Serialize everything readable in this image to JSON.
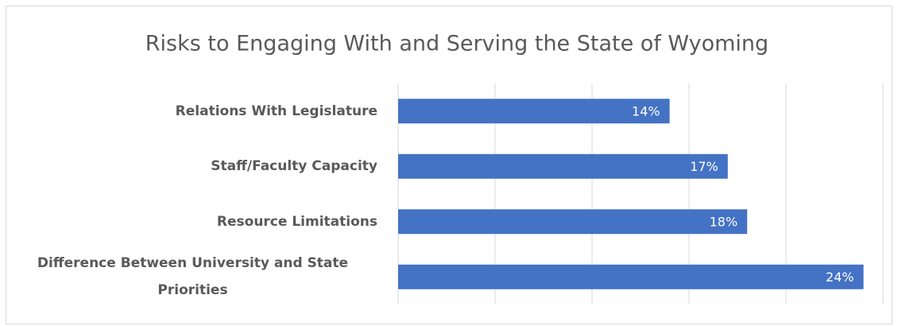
{
  "chart_data": {
    "type": "bar",
    "orientation": "horizontal",
    "title": "Risks to Engaging With and Serving the State of Wyoming",
    "categories": [
      "Relations With Legislature",
      "Staff/Faculty Capacity",
      "Resource Limitations",
      "Difference Between University and State Priorities"
    ],
    "values": [
      14,
      17,
      18,
      24
    ],
    "value_labels": [
      "14%",
      "17%",
      "18%",
      "24%"
    ],
    "color": "#4472c4",
    "xlim": [
      0,
      25
    ],
    "xticks": [
      0,
      5,
      10,
      15,
      20,
      25
    ],
    "grid": true
  }
}
